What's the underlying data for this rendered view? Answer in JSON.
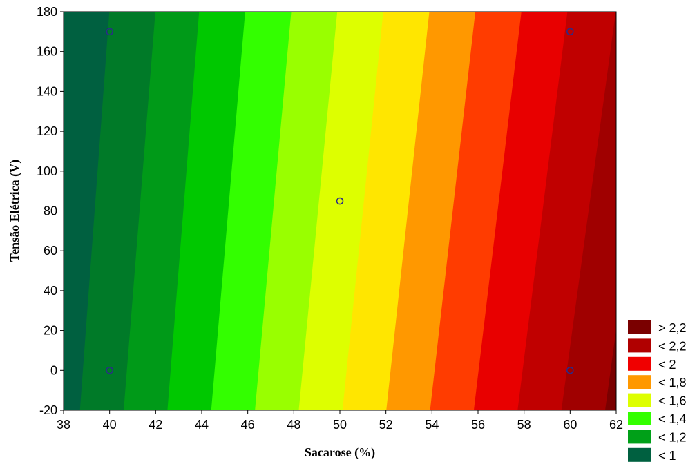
{
  "chart_data": {
    "type": "contour",
    "xlabel": "Sacarose (%)",
    "ylabel": "Tensão Elétrica (V)",
    "xlim": [
      38,
      62
    ],
    "ylim": [
      -20,
      180
    ],
    "xticks": [
      "38",
      "40",
      "42",
      "44",
      "46",
      "48",
      "50",
      "52",
      "54",
      "56",
      "58",
      "60",
      "62"
    ],
    "yticks": [
      "-20",
      "0",
      "20",
      "40",
      "60",
      "80",
      "100",
      "120",
      "140",
      "160",
      "180"
    ],
    "grid": false,
    "legend_position": "bottom-right",
    "contour_bands": [
      {
        "label": "< 1",
        "color": "#006040",
        "bottom_x": 38.0,
        "top_x": 38.0
      },
      {
        "label": "< 1,2",
        "color": "#007A28",
        "bottom_x": 38.7,
        "top_x": 40.0
      },
      {
        "label": "< 1,2",
        "color": "#009A18",
        "bottom_x": 40.6,
        "top_x": 42.0
      },
      {
        "label": "< 1,4",
        "color": "#00C800",
        "bottom_x": 42.5,
        "top_x": 43.9
      },
      {
        "label": "< 1,4",
        "color": "#33FF00",
        "bottom_x": 44.4,
        "top_x": 45.9
      },
      {
        "label": "< 1,6",
        "color": "#99FF00",
        "bottom_x": 46.3,
        "top_x": 47.9
      },
      {
        "label": "< 1,6",
        "color": "#DDFF00",
        "bottom_x": 48.2,
        "top_x": 49.9
      },
      {
        "label": "< 1,8",
        "color": "#FFE600",
        "bottom_x": 50.1,
        "top_x": 51.9
      },
      {
        "label": "< 1,8",
        "color": "#FF9800",
        "bottom_x": 52.0,
        "top_x": 53.9
      },
      {
        "label": "< 2",
        "color": "#FF3C00",
        "bottom_x": 53.9,
        "top_x": 55.9
      },
      {
        "label": "< 2",
        "color": "#E80000",
        "bottom_x": 55.8,
        "top_x": 57.9
      },
      {
        "label": "< 2,2",
        "color": "#C00000",
        "bottom_x": 57.7,
        "top_x": 59.9
      },
      {
        "label": "< 2,2",
        "color": "#A00000",
        "bottom_x": 59.6,
        "top_x": 62.0
      },
      {
        "label": "> 2,2",
        "color": "#7A0000",
        "bottom_x": 61.5,
        "top_x": 63.9
      }
    ],
    "points": [
      {
        "x": 40,
        "y": 170
      },
      {
        "x": 40,
        "y": 0
      },
      {
        "x": 50,
        "y": 85
      },
      {
        "x": 60,
        "y": 170
      },
      {
        "x": 60,
        "y": 0
      }
    ],
    "legend": [
      {
        "label": "> 2,2",
        "color": "#7A0000"
      },
      {
        "label": "< 2,2",
        "color": "#B00000"
      },
      {
        "label": "< 2",
        "color": "#F00000"
      },
      {
        "label": "< 1,8",
        "color": "#FF9800"
      },
      {
        "label": "< 1,6",
        "color": "#DDFF00"
      },
      {
        "label": "< 1,4",
        "color": "#33FF00"
      },
      {
        "label": "< 1,2",
        "color": "#00A018"
      },
      {
        "label": "< 1",
        "color": "#006040"
      }
    ]
  }
}
